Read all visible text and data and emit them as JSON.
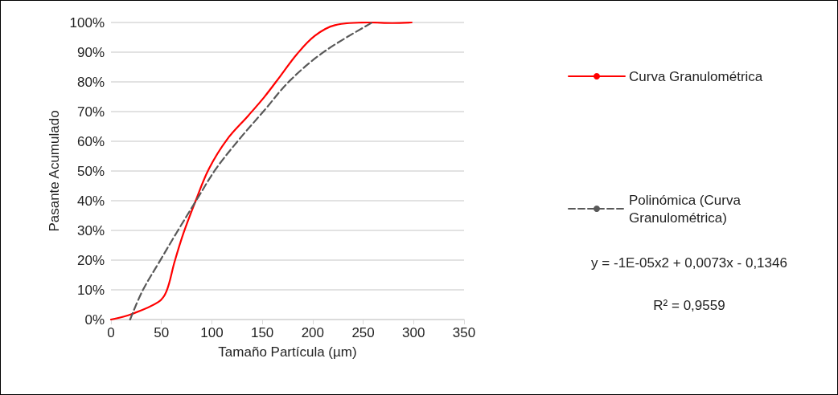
{
  "chart_data": {
    "type": "line",
    "xlabel": "Tamaño Partícula (µm)",
    "ylabel": "Pasante Acumulado",
    "xlim": [
      0,
      350
    ],
    "xticks": [
      0,
      50,
      100,
      150,
      200,
      250,
      300,
      350
    ],
    "ylim": [
      0,
      100
    ],
    "yticks": [
      {
        "value": 0,
        "label": "0%"
      },
      {
        "value": 10,
        "label": "10%"
      },
      {
        "value": 20,
        "label": "20%"
      },
      {
        "value": 30,
        "label": "30%"
      },
      {
        "value": 40,
        "label": "40%"
      },
      {
        "value": 50,
        "label": "50%"
      },
      {
        "value": 60,
        "label": "60%"
      },
      {
        "value": 70,
        "label": "70%"
      },
      {
        "value": 80,
        "label": "80%"
      },
      {
        "value": 90,
        "label": "90%"
      },
      {
        "value": 100,
        "label": "100%"
      }
    ],
    "grid": "y",
    "legend": "right",
    "marker": "none",
    "series": [
      {
        "name": "Curva Granulométrica",
        "color": "#ff0000",
        "line_style": "solid",
        "x": [
          0,
          21,
          47,
          55,
          63,
          72,
          84,
          97,
          115,
          136,
          152,
          168,
          184,
          202,
          222,
          256,
          279,
          298
        ],
        "values": [
          0,
          1.9,
          5.9,
          9.5,
          19.4,
          29.2,
          40,
          50.7,
          60.6,
          68.6,
          74.9,
          82,
          89.2,
          95.5,
          99.1,
          100,
          99.8,
          100
        ]
      },
      {
        "name": "Polinómica (Curva Granulométrica)",
        "color": "#595959",
        "line_style": "dashed",
        "x": [
          19,
          31,
          49.5,
          65,
          86,
          104,
          127,
          152,
          177,
          211,
          259
        ],
        "values": [
          0,
          9.5,
          20.3,
          29.2,
          40.9,
          50.7,
          60.6,
          70.4,
          80.3,
          90.1,
          100
        ]
      }
    ],
    "annotations": [
      "y = -1E-05x2 + 0,0073x - 0,1346",
      "R² = 0,9559"
    ]
  }
}
